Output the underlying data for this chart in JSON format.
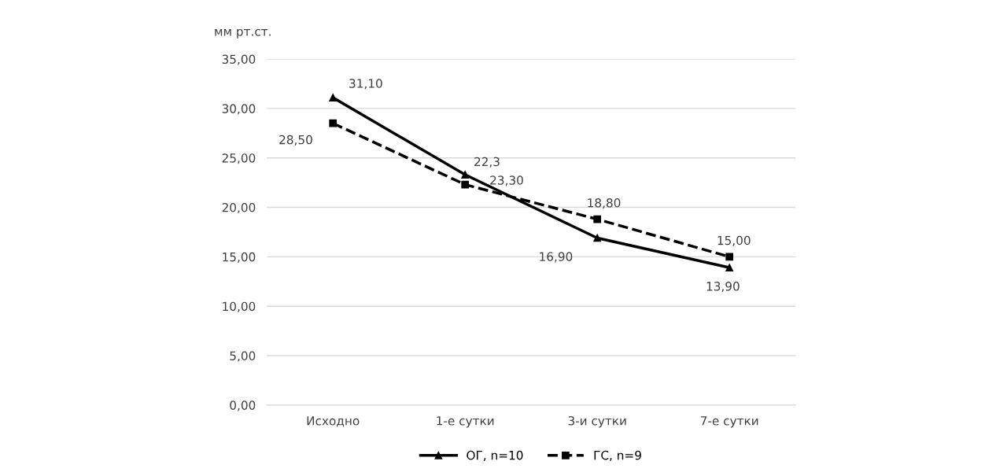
{
  "chart_data": {
    "type": "line",
    "ylabel": "мм рт.ст.",
    "categories": [
      "Исходно",
      "1-е сутки",
      "3-и сутки",
      "7-е сутки"
    ],
    "series": [
      {
        "name": "ОГ, n=10",
        "color": "#000000",
        "line_style": "solid",
        "marker": "triangle",
        "values": [
          31.1,
          23.3,
          16.9,
          13.9
        ],
        "value_labels": [
          "31,10",
          "23,30",
          "16,90",
          "13,90"
        ]
      },
      {
        "name": "ГС, n=9",
        "color": "#000000",
        "line_style": "dashed",
        "marker": "square",
        "values": [
          28.5,
          22.3,
          18.8,
          15.0
        ],
        "value_labels": [
          "28,50",
          "22,3",
          "18,80",
          "15,00"
        ]
      }
    ],
    "ylim": [
      0,
      35
    ],
    "yticks": [
      {
        "value": 0,
        "label": "0,00"
      },
      {
        "value": 5,
        "label": "5,00"
      },
      {
        "value": 10,
        "label": "10,00"
      },
      {
        "value": 15,
        "label": "15,00"
      },
      {
        "value": 20,
        "label": "20,00"
      },
      {
        "value": 25,
        "label": "25,00"
      },
      {
        "value": 30,
        "label": "30,00"
      },
      {
        "value": 35,
        "label": "35,00"
      }
    ],
    "grid": "y",
    "legend": "bottom"
  }
}
